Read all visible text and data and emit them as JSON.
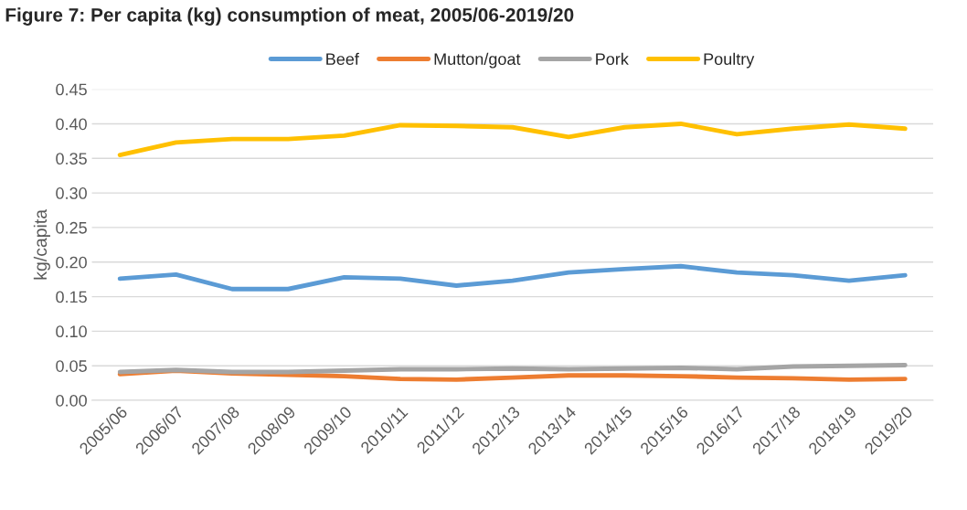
{
  "chart_data": {
    "type": "line",
    "title": "Figure 7: Per capita (kg) consumption of meat, 2005/06-2019/20",
    "ylabel": "kg/capita",
    "categories": [
      "2005/06",
      "2006/07",
      "2007/08",
      "2008/09",
      "2009/10",
      "2010/11",
      "2011/12",
      "2012/13",
      "2013/14",
      "2014/15",
      "2015/16",
      "2016/17",
      "2017/18",
      "2018/19",
      "2019/20"
    ],
    "series": [
      {
        "name": "Beef",
        "color": "#5b9bd5",
        "values": [
          0.176,
          0.182,
          0.161,
          0.161,
          0.178,
          0.176,
          0.166,
          0.173,
          0.185,
          0.19,
          0.194,
          0.185,
          0.181,
          0.173,
          0.181
        ]
      },
      {
        "name": "Mutton/goat",
        "color": "#ed7d31",
        "values": [
          0.038,
          0.043,
          0.039,
          0.037,
          0.035,
          0.031,
          0.03,
          0.033,
          0.036,
          0.036,
          0.035,
          0.033,
          0.032,
          0.03,
          0.031
        ]
      },
      {
        "name": "Pork",
        "color": "#a5a5a5",
        "values": [
          0.041,
          0.044,
          0.041,
          0.041,
          0.043,
          0.045,
          0.045,
          0.046,
          0.045,
          0.046,
          0.047,
          0.045,
          0.049,
          0.05,
          0.051
        ]
      },
      {
        "name": "Poultry",
        "color": "#ffc000",
        "values": [
          0.355,
          0.373,
          0.378,
          0.378,
          0.383,
          0.398,
          0.397,
          0.395,
          0.381,
          0.395,
          0.4,
          0.385,
          0.393,
          0.399,
          0.393
        ]
      }
    ],
    "ylim": [
      0,
      0.45
    ],
    "yticks": [
      {
        "value": 0,
        "label": "0.00"
      },
      {
        "value": 0.05,
        "label": "0.05"
      },
      {
        "value": 0.1,
        "label": "0.10"
      },
      {
        "value": 0.15,
        "label": "0.15"
      },
      {
        "value": 0.2,
        "label": "0.20"
      },
      {
        "value": 0.25,
        "label": "0.25"
      },
      {
        "value": 0.3,
        "label": "0.30"
      },
      {
        "value": 0.35,
        "label": "0.35"
      },
      {
        "value": 0.4,
        "label": "0.40"
      },
      {
        "value": 0.45,
        "label": "0.45"
      }
    ],
    "grid": "y",
    "legend": "top",
    "marker": "none",
    "line_style": "solid"
  }
}
